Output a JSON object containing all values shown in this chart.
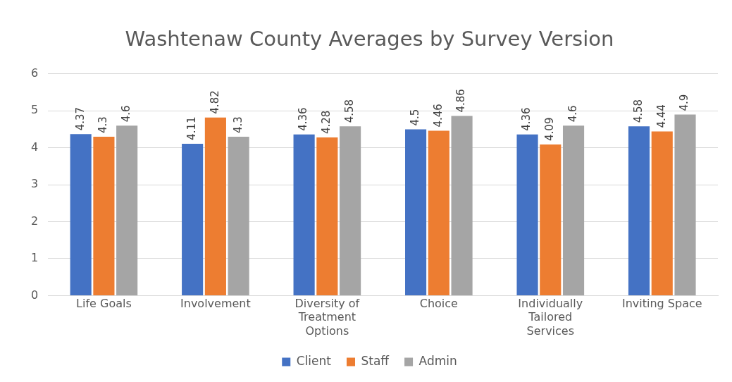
{
  "chart_data": {
    "type": "bar",
    "title": "Washtenaw County Averages by Survey Version",
    "categories": [
      "Life Goals",
      "Involvement",
      "Diversity of Treatment Options",
      "Choice",
      "Individually Tailored Services",
      "Inviting Space"
    ],
    "series": [
      {
        "name": "Client",
        "color": "#4472c4",
        "values": [
          4.37,
          4.11,
          4.36,
          4.5,
          4.36,
          4.58
        ]
      },
      {
        "name": "Staff",
        "color": "#ed7d31",
        "values": [
          4.3,
          4.82,
          4.28,
          4.46,
          4.09,
          4.44
        ]
      },
      {
        "name": "Admin",
        "color": "#a5a5a5",
        "values": [
          4.6,
          4.3,
          4.58,
          4.86,
          4.6,
          4.9
        ]
      }
    ],
    "ylim": [
      0,
      6
    ],
    "yticks": [
      0,
      1,
      2,
      3,
      4,
      5,
      6
    ],
    "grid": "y",
    "legend": "bottom",
    "data_labels": true
  }
}
